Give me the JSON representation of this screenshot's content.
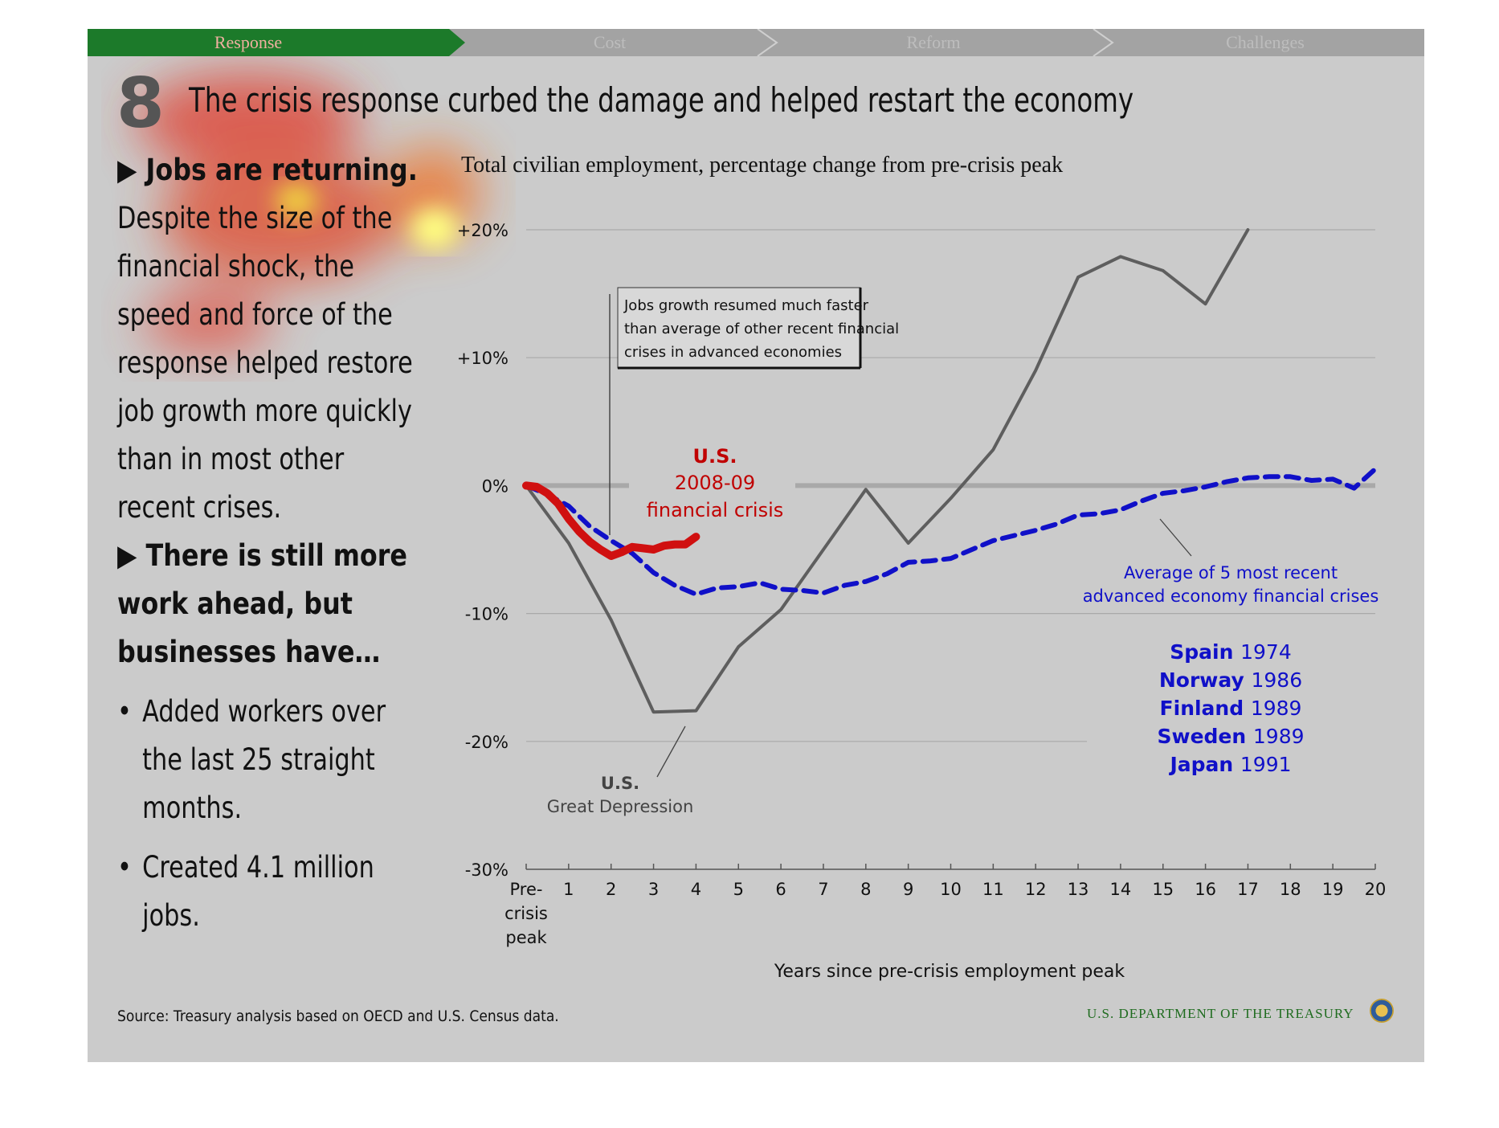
{
  "nav": {
    "tabs": [
      "Response",
      "Cost",
      "Reform",
      "Challenges"
    ],
    "active_color": "#1c7a2a"
  },
  "slide": {
    "number": "8",
    "title": "The crisis response curbed the damage and helped restart the economy"
  },
  "left": {
    "heading1": "▶ Jobs are returning.",
    "para_lines": [
      "Despite the size of the",
      "financial shock, the",
      "speed and force of the",
      "response helped restore",
      "job growth more quickly",
      "than in most other",
      "recent crises."
    ],
    "heading2_lines": [
      "▶ There is still more",
      "work ahead, but",
      "businesses have…"
    ],
    "bullets": [
      {
        "lines": [
          "Added workers over",
          "the last 25 straight",
          "months."
        ]
      },
      {
        "lines": [
          "Created 4.1 million",
          "jobs."
        ]
      }
    ]
  },
  "footer": {
    "source": "Source: Treasury analysis based on OECD and U.S. Census data.",
    "department": "U.S. DEPARTMENT OF THE TREASURY"
  },
  "chart_data": {
    "type": "line",
    "title": "Total civilian employment, percentage change from pre-crisis peak",
    "xlabel": "Years since pre-crisis employment peak",
    "x_tick_labels": [
      "Pre-\ncrisis\npeak",
      "1",
      "2",
      "3",
      "4",
      "5",
      "6",
      "7",
      "8",
      "9",
      "10",
      "11",
      "12",
      "13",
      "14",
      "15",
      "16",
      "17",
      "18",
      "19",
      "20"
    ],
    "xlim": [
      0,
      20
    ],
    "ylim": [
      -30,
      20
    ],
    "y_tick_labels": [
      "+20%",
      "+10%",
      "0%",
      "-10%",
      "-20%",
      "-30%"
    ],
    "y_tick_values": [
      20,
      10,
      0,
      -10,
      -20,
      -30
    ],
    "series": [
      {
        "name": "U.S. Great Depression",
        "color": "#5e5e5e",
        "style": "solid",
        "x": [
          0,
          1,
          2,
          3,
          4,
          5,
          6,
          7,
          8,
          9,
          10,
          11,
          12,
          13,
          14,
          15,
          16,
          17
        ],
        "values": [
          0,
          -4.5,
          -10.5,
          -17.7,
          -17.6,
          -12.6,
          -9.7,
          -5.0,
          -0.3,
          -4.5,
          -1.0,
          2.8,
          9.0,
          16.3,
          17.9,
          16.8,
          14.2,
          20.0
        ]
      },
      {
        "name": "Average of 5 most recent advanced economy financial crises",
        "color": "#1010c8",
        "style": "dashed",
        "x": [
          0,
          0.5,
          1,
          1.5,
          2,
          2.5,
          3,
          3.5,
          4,
          4.5,
          5,
          5.5,
          6,
          6.5,
          7,
          7.5,
          8,
          8.5,
          9,
          9.5,
          10,
          10.5,
          11,
          11.5,
          12,
          12.5,
          13,
          13.5,
          14,
          14.5,
          15,
          15.5,
          16,
          16.5,
          17,
          17.5,
          18,
          18.5,
          19,
          19.5,
          20
        ],
        "values": [
          0,
          -0.7,
          -1.6,
          -3.2,
          -4.3,
          -5.3,
          -6.8,
          -7.8,
          -8.5,
          -8.0,
          -7.9,
          -7.6,
          -8.1,
          -8.2,
          -8.4,
          -7.8,
          -7.5,
          -6.9,
          -6.0,
          -5.9,
          -5.7,
          -5.0,
          -4.3,
          -3.9,
          -3.5,
          -3.0,
          -2.3,
          -2.2,
          -1.9,
          -1.2,
          -0.6,
          -0.4,
          -0.1,
          0.3,
          0.6,
          0.7,
          0.7,
          0.4,
          0.5,
          -0.2,
          1.3
        ]
      },
      {
        "name": "U.S. 2008-09 financial crisis",
        "color": "#d01010",
        "style": "solid",
        "x": [
          0,
          0.25,
          0.5,
          0.75,
          1,
          1.25,
          1.5,
          1.75,
          2,
          2.25,
          2.5,
          2.75,
          3,
          3.25,
          3.5,
          3.75,
          4
        ],
        "values": [
          0,
          -0.1,
          -0.6,
          -1.4,
          -2.6,
          -3.6,
          -4.4,
          -5.0,
          -5.5,
          -5.2,
          -4.8,
          -4.9,
          -5.0,
          -4.7,
          -4.6,
          -4.6,
          -4.0
        ]
      }
    ],
    "annotations": {
      "callout": [
        "Jobs growth resumed much faster",
        "than average of other recent financial",
        "crises in advanced economies"
      ],
      "us_crisis_label": [
        "U.S.",
        "2008-09",
        "financial crisis"
      ],
      "depression_label": [
        "U.S.",
        "Great Depression"
      ],
      "average_label": [
        "Average of 5 most recent",
        "advanced economy financial crises"
      ],
      "crises_list": [
        {
          "country": "Spain",
          "year": "1974"
        },
        {
          "country": "Norway",
          "year": "1986"
        },
        {
          "country": "Finland",
          "year": "1989"
        },
        {
          "country": "Sweden",
          "year": "1989"
        },
        {
          "country": "Japan",
          "year": "1991"
        }
      ]
    },
    "grid": true
  }
}
